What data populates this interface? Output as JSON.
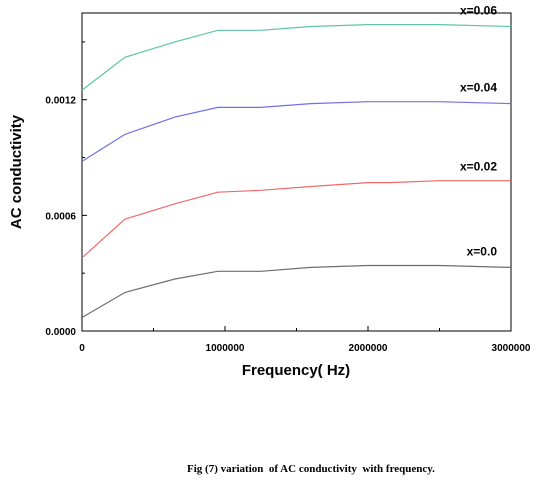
{
  "chart_data": {
    "type": "line",
    "xlabel": "Frequency( Hz)",
    "ylabel": "AC conductivity",
    "xlim": [
      0,
      3000000
    ],
    "ylim": [
      0,
      0.00165
    ],
    "x_ticks": [
      "0",
      "1000000",
      "2000000",
      "3000000"
    ],
    "y_ticks": [
      "0.0000",
      "0.0006",
      "0.0012"
    ],
    "x_tick_values": [
      0,
      1000000,
      2000000,
      3000000
    ],
    "y_tick_values": [
      0,
      0.0006,
      0.0012
    ],
    "minor_x_step": 500000,
    "minor_y_step": 0.0003,
    "grid": false,
    "x": [
      0,
      300000,
      650000,
      950000,
      1250000,
      1600000,
      2000000,
      2150000,
      2500000,
      3000000
    ],
    "series": [
      {
        "name": "x=0.0",
        "color": "#6e6e6e",
        "values": [
          7e-05,
          0.0002,
          0.00027,
          0.00031,
          0.00031,
          0.00033,
          0.00034,
          0.00034,
          0.00034,
          0.00033
        ]
      },
      {
        "name": "x=0.02",
        "color": "#f06a6a",
        "values": [
          0.00038,
          0.00058,
          0.00066,
          0.00072,
          0.00073,
          0.00075,
          0.00077,
          0.00077,
          0.00078,
          0.00078
        ]
      },
      {
        "name": "x=0.04",
        "color": "#7070e6",
        "values": [
          0.00088,
          0.00102,
          0.00111,
          0.00116,
          0.00116,
          0.00118,
          0.00119,
          0.00119,
          0.00119,
          0.00118
        ]
      },
      {
        "name": "x=0.06",
        "color": "#5cc4a8",
        "values": [
          0.00125,
          0.00142,
          0.0015,
          0.00156,
          0.00156,
          0.00158,
          0.00159,
          0.00159,
          0.00159,
          0.00158
        ]
      }
    ]
  },
  "caption": "Fig (7) variation  of AC conductivity  with frequency."
}
